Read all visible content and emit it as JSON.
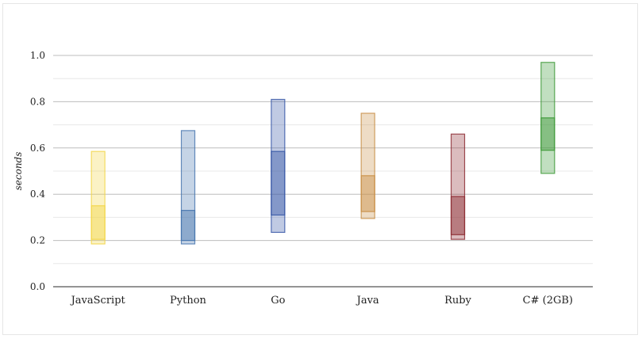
{
  "chart_data": {
    "type": "boxplot",
    "ylabel": "seconds",
    "ylim": [
      0,
      1.0
    ],
    "yticks": [
      "0.0",
      "0.2",
      "0.4",
      "0.6",
      "0.8",
      "1.0"
    ],
    "grid": true,
    "categories": [
      "JavaScript",
      "Python",
      "Go",
      "Java",
      "Ruby",
      "C# (2GB)"
    ],
    "series": [
      {
        "category": "JavaScript",
        "min": 0.185,
        "q1": 0.205,
        "q3": 0.35,
        "max": 0.585,
        "color": "#f2d64b"
      },
      {
        "category": "Python",
        "min": 0.185,
        "q1": 0.2,
        "q3": 0.33,
        "max": 0.675,
        "color": "#4a78b0"
      },
      {
        "category": "Go",
        "min": 0.235,
        "q1": 0.31,
        "q3": 0.585,
        "max": 0.81,
        "color": "#3b5ba8"
      },
      {
        "category": "Java",
        "min": 0.295,
        "q1": 0.325,
        "q3": 0.48,
        "max": 0.75,
        "color": "#c9914a"
      },
      {
        "category": "Ruby",
        "min": 0.205,
        "q1": 0.225,
        "q3": 0.39,
        "max": 0.66,
        "color": "#8e2e35"
      },
      {
        "category": "C# (2GB)",
        "min": 0.49,
        "q1": 0.59,
        "q3": 0.73,
        "max": 0.97,
        "color": "#3f9a3a"
      }
    ]
  }
}
